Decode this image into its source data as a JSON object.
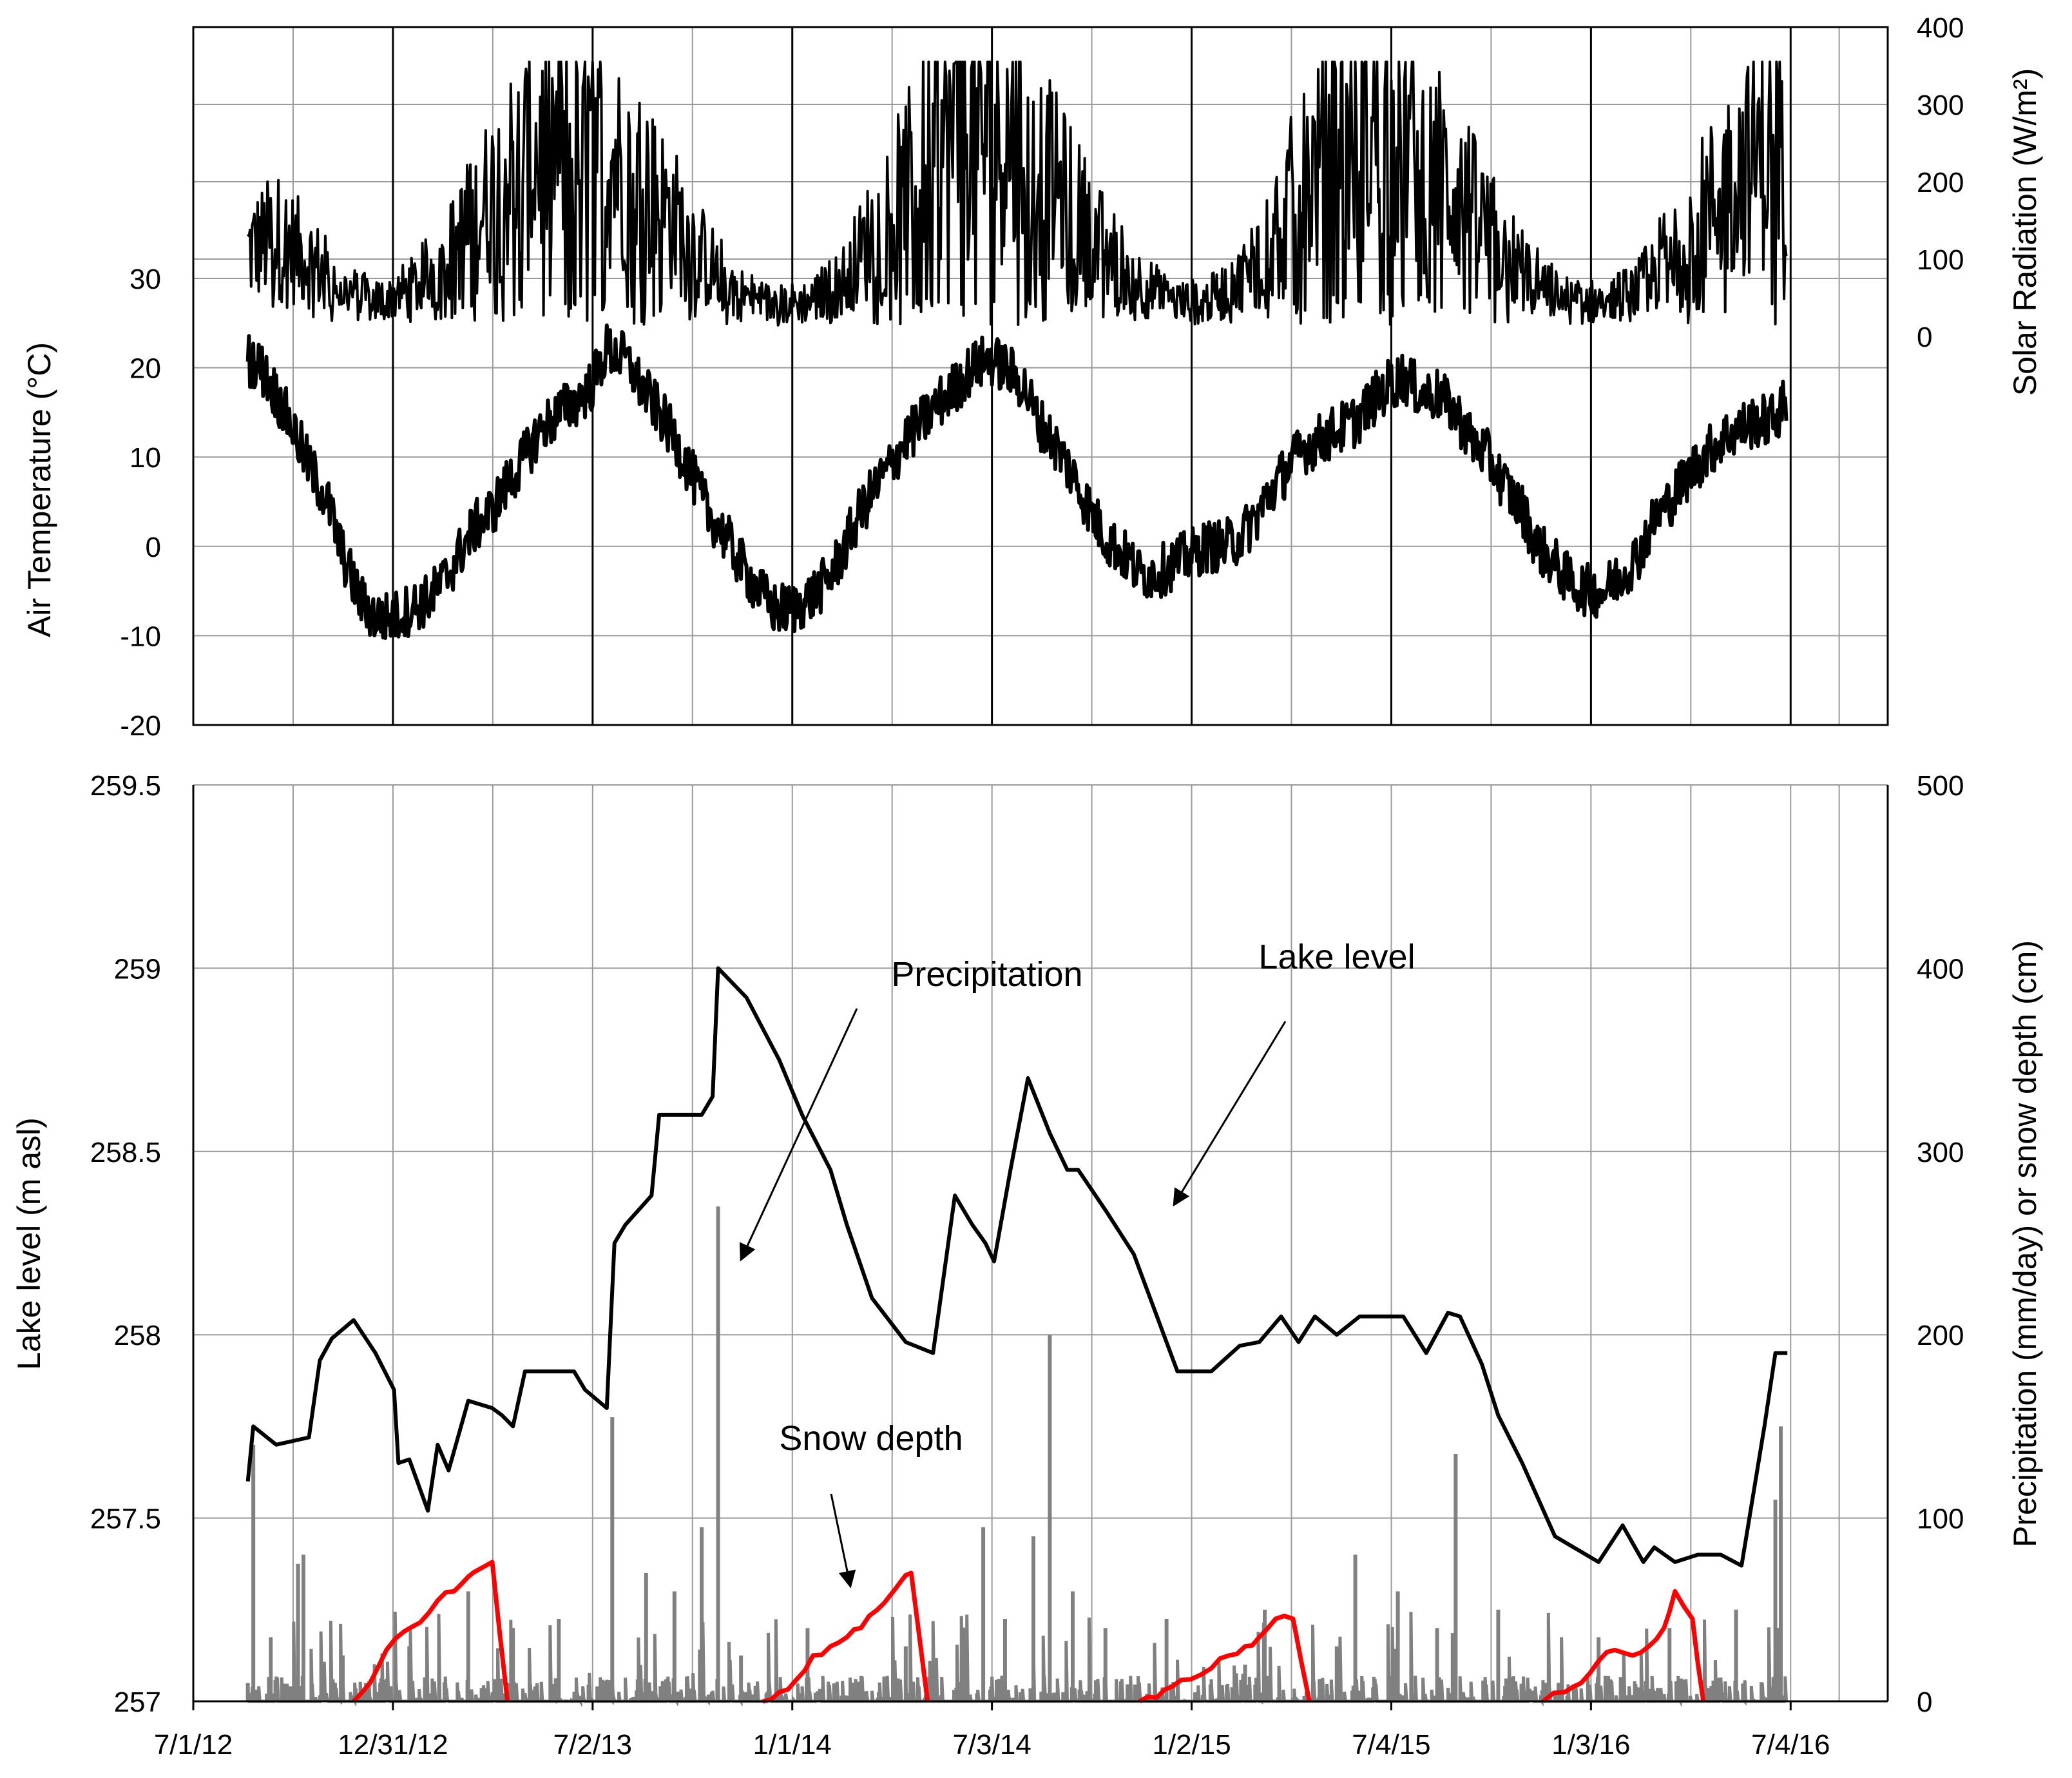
{
  "chart_data": [
    {
      "type": "line",
      "panel": "top",
      "ylabel_left": "Air Temperature (°C)",
      "ylabel_right": "Solar Radiation (W/m²)",
      "ylim_left": [
        -20,
        30
      ],
      "yticks_left": [
        "-20",
        "-10",
        "0",
        "10",
        "20",
        "30"
      ],
      "ylim_right": [
        0,
        400
      ],
      "yticks_right": [
        "0",
        "100",
        "200",
        "300",
        "400"
      ],
      "xlim": [
        "2012-07-01",
        "2016-10-01"
      ],
      "grid": true,
      "series": [
        {
          "key": "solar_radiation",
          "axis": "right",
          "color": "#000000",
          "x": [
            "2012-08-20",
            "2012-09-15",
            "2012-10-15",
            "2012-11-15",
            "2012-12-15",
            "2013-01-15",
            "2013-02-15",
            "2013-03-15",
            "2013-04-15",
            "2013-05-15",
            "2013-06-15",
            "2013-07-15",
            "2013-08-15",
            "2013-09-15",
            "2013-10-15",
            "2013-11-15",
            "2013-12-15",
            "2014-01-15",
            "2014-02-15",
            "2014-03-15",
            "2014-04-15",
            "2014-05-15",
            "2014-06-15",
            "2014-07-15",
            "2014-08-15",
            "2014-09-15",
            "2014-10-15",
            "2014-11-15",
            "2014-12-15",
            "2015-01-15",
            "2015-02-15",
            "2015-03-15",
            "2015-04-15",
            "2015-05-15",
            "2015-06-15",
            "2015-07-15",
            "2015-08-15",
            "2015-09-15",
            "2015-10-15",
            "2015-11-15",
            "2015-12-15",
            "2016-01-15",
            "2016-02-15",
            "2016-03-15",
            "2016-04-15",
            "2016-05-15",
            "2016-06-15",
            "2016-06-30"
          ],
          "y": [
            110,
            130,
            100,
            60,
            45,
            60,
            95,
            150,
            210,
            240,
            250,
            235,
            200,
            150,
            95,
            55,
            40,
            45,
            70,
            130,
            190,
            250,
            270,
            260,
            220,
            165,
            110,
            70,
            45,
            45,
            70,
            130,
            200,
            245,
            270,
            255,
            215,
            165,
            110,
            70,
            45,
            45,
            60,
            110,
            160,
            210,
            240,
            250
          ]
        },
        {
          "key": "air_temperature",
          "axis": "left",
          "color": "#000000",
          "x": [
            "2012-08-20",
            "2012-09-01",
            "2012-09-15",
            "2012-10-01",
            "2012-10-15",
            "2012-11-01",
            "2012-11-15",
            "2012-12-01",
            "2012-12-15",
            "2013-01-01",
            "2013-01-15",
            "2013-02-01",
            "2013-02-15",
            "2013-03-01",
            "2013-03-15",
            "2013-04-01",
            "2013-04-15",
            "2013-05-01",
            "2013-05-15",
            "2013-06-01",
            "2013-06-15",
            "2013-07-01",
            "2013-07-15",
            "2013-08-01",
            "2013-08-15",
            "2013-09-01",
            "2013-09-15",
            "2013-10-01",
            "2013-10-15",
            "2013-11-01",
            "2013-11-15",
            "2013-12-01",
            "2013-12-15",
            "2014-01-01",
            "2014-01-15",
            "2014-02-01",
            "2014-02-15",
            "2014-03-01",
            "2014-03-15",
            "2014-04-01",
            "2014-04-15",
            "2014-05-01",
            "2014-05-15",
            "2014-06-01",
            "2014-06-15",
            "2014-07-01",
            "2014-07-15",
            "2014-08-01",
            "2014-08-15",
            "2014-09-01",
            "2014-09-15",
            "2014-10-01",
            "2014-10-15",
            "2014-11-01",
            "2014-11-15",
            "2014-12-01",
            "2014-12-15",
            "2015-01-01",
            "2015-01-15",
            "2015-02-01",
            "2015-02-15",
            "2015-03-01",
            "2015-03-15",
            "2015-04-01",
            "2015-04-15",
            "2015-05-01",
            "2015-05-15",
            "2015-06-01",
            "2015-06-15",
            "2015-07-01",
            "2015-07-15",
            "2015-08-01",
            "2015-08-15",
            "2015-09-01",
            "2015-09-15",
            "2015-10-01",
            "2015-10-15",
            "2015-11-01",
            "2015-11-15",
            "2015-12-01",
            "2015-12-15",
            "2016-01-01",
            "2016-01-15",
            "2016-02-01",
            "2016-02-15",
            "2016-03-01",
            "2016-03-15",
            "2016-04-01",
            "2016-04-15",
            "2016-05-01",
            "2016-05-15",
            "2016-06-01",
            "2016-06-15",
            "2016-06-30"
          ],
          "y": [
            21,
            20,
            17,
            13,
            9,
            5,
            -1,
            -6,
            -8,
            -8,
            -7,
            -6,
            -4,
            -1,
            2,
            4,
            7,
            10,
            13,
            15,
            16,
            18,
            22,
            21,
            18,
            15,
            12,
            8,
            4,
            1,
            -2,
            -5,
            -7,
            -7,
            -6,
            -4,
            -1,
            3,
            6,
            9,
            12,
            14,
            16,
            18,
            20,
            21,
            20,
            18,
            14,
            11,
            8,
            4,
            1,
            -1,
            -3,
            -3,
            -2,
            -1,
            0,
            0,
            1,
            3,
            6,
            9,
            11,
            12,
            13,
            14,
            16,
            18,
            19,
            17,
            17,
            15,
            12,
            10,
            7,
            4,
            0,
            -2,
            -4,
            -5,
            -5,
            -3,
            -1,
            3,
            5,
            8,
            10,
            12,
            13,
            14,
            14,
            16
          ]
        }
      ]
    },
    {
      "type": "line",
      "panel": "bottom",
      "ylabel_left": "Lake level (m asl)",
      "ylabel_right": "Precipitation (mm/day) or snow depth (cm)",
      "ylim_left": [
        257,
        259.5
      ],
      "yticks_left": [
        "257",
        "257.5",
        "258",
        "258.5",
        "259",
        "259.5"
      ],
      "ylim_right": [
        0,
        500
      ],
      "yticks_right": [
        "0",
        "100",
        "200",
        "300",
        "400",
        "500"
      ],
      "xlim": [
        "2012-07-01",
        "2016-10-01"
      ],
      "xticks": [
        "7/1/12",
        "12/31/12",
        "7/2/13",
        "1/1/14",
        "7/3/14",
        "1/2/15",
        "7/4/15",
        "1/3/16",
        "7/4/16"
      ],
      "grid": true,
      "annotations": [
        {
          "text": "Precipitation",
          "points_to": [
            "2013-12-10",
            250
          ]
        },
        {
          "text": "Lake level",
          "points_to": [
            "2014-11-10",
            258.35
          ]
        },
        {
          "text": "Snow depth",
          "points_to": [
            "2014-04-05",
            68
          ]
        }
      ],
      "series": [
        {
          "key": "lake_level",
          "axis": "left",
          "color": "#000000",
          "x": [
            "2012-08-20",
            "2012-08-25",
            "2012-09-15",
            "2012-10-15",
            "2012-10-25",
            "2012-11-05",
            "2012-11-25",
            "2012-12-15",
            "2013-01-01",
            "2013-01-05",
            "2013-01-15",
            "2013-02-01",
            "2013-02-10",
            "2013-02-20",
            "2013-03-10",
            "2013-04-01",
            "2013-04-10",
            "2013-04-20",
            "2013-05-01",
            "2013-05-15",
            "2013-06-15",
            "2013-06-25",
            "2013-07-15",
            "2013-07-22",
            "2013-08-01",
            "2013-08-25",
            "2013-09-01",
            "2013-09-20",
            "2013-10-10",
            "2013-10-20",
            "2013-10-25",
            "2013-11-20",
            "2013-12-20",
            "2014-01-10",
            "2014-02-05",
            "2014-02-20",
            "2014-03-15",
            "2014-04-15",
            "2014-05-10",
            "2014-05-30",
            "2014-06-15",
            "2014-06-27",
            "2014-07-05",
            "2014-07-20",
            "2014-08-05",
            "2014-08-25",
            "2014-09-10",
            "2014-09-20",
            "2014-10-15",
            "2014-11-10",
            "2014-12-20",
            "2015-01-20",
            "2015-02-15",
            "2015-03-05",
            "2015-03-25",
            "2015-04-10",
            "2015-04-25",
            "2015-05-15",
            "2015-06-05",
            "2015-06-25",
            "2015-07-15",
            "2015-08-05",
            "2015-08-25",
            "2015-09-05",
            "2015-09-25",
            "2015-10-10",
            "2015-11-01",
            "2015-12-01",
            "2016-01-10",
            "2016-02-01",
            "2016-02-20",
            "2016-03-01",
            "2016-03-20",
            "2016-04-10",
            "2016-05-01",
            "2016-05-20",
            "2016-06-10",
            "2016-06-20",
            "2016-06-25",
            "2016-06-28",
            "2016-07-01"
          ],
          "y": [
            257.6,
            257.75,
            257.7,
            257.72,
            257.93,
            257.99,
            258.04,
            257.95,
            257.85,
            257.65,
            257.66,
            257.52,
            257.7,
            257.63,
            257.82,
            257.8,
            257.78,
            257.75,
            257.9,
            257.9,
            257.9,
            257.85,
            257.8,
            258.25,
            258.3,
            258.38,
            258.6,
            258.6,
            258.6,
            258.65,
            259.0,
            258.92,
            258.75,
            258.6,
            258.45,
            258.3,
            258.1,
            257.98,
            257.95,
            258.38,
            258.3,
            258.25,
            258.2,
            258.45,
            258.7,
            258.55,
            258.45,
            258.45,
            258.34,
            258.22,
            257.9,
            257.9,
            257.97,
            257.98,
            258.05,
            257.98,
            258.05,
            258.0,
            258.05,
            258.05,
            258.05,
            257.95,
            258.06,
            258.05,
            257.92,
            257.78,
            257.65,
            257.45,
            257.38,
            257.48,
            257.38,
            257.42,
            257.38,
            257.4,
            257.4,
            257.37,
            257.75,
            257.95,
            257.95,
            257.95,
            257.95
          ]
        },
        {
          "key": "precipitation",
          "axis": "right",
          "color": "#808080",
          "x": [
            "2012-08-20",
            "2012-08-25",
            "2012-09-10",
            "2012-10-05",
            "2012-10-10",
            "2012-11-15",
            "2013-01-15",
            "2013-03-10",
            "2013-04-20",
            "2013-06-01",
            "2013-07-20",
            "2013-08-20",
            "2013-09-15",
            "2013-10-10",
            "2013-10-25",
            "2013-11-15",
            "2014-01-15",
            "2014-04-15",
            "2014-06-25",
            "2014-07-15",
            "2014-08-10",
            "2014-08-25",
            "2014-09-15",
            "2014-10-15",
            "2014-12-10",
            "2015-02-20",
            "2015-03-10",
            "2015-05-15",
            "2015-06-01",
            "2015-07-10",
            "2015-08-15",
            "2015-09-01",
            "2015-10-10",
            "2016-01-10",
            "2016-03-15",
            "2016-05-15",
            "2016-06-20",
            "2016-06-25"
          ],
          "y": [
            10,
            140,
            35,
            75,
            80,
            25,
            30,
            60,
            40,
            45,
            155,
            70,
            60,
            95,
            270,
            25,
            40,
            30,
            95,
            45,
            90,
            200,
            60,
            40,
            45,
            20,
            50,
            30,
            80,
            60,
            40,
            135,
            50,
            35,
            40,
            50,
            110,
            150
          ]
        },
        {
          "key": "snow_depth",
          "axis": "right",
          "color": "#ff0000",
          "x": [
            "2012-11-25",
            "2012-12-10",
            "2012-12-25",
            "2013-01-10",
            "2013-01-25",
            "2013-02-10",
            "2013-02-25",
            "2013-03-10",
            "2013-03-20",
            "2013-04-01",
            "2013-04-15",
            "2013-12-05",
            "2013-12-20",
            "2014-01-05",
            "2014-01-20",
            "2014-02-05",
            "2014-02-20",
            "2014-03-05",
            "2014-03-20",
            "2014-04-01",
            "2014-04-10",
            "2014-04-20",
            "2014-05-05",
            "2014-11-15",
            "2014-12-01",
            "2014-12-15",
            "2015-01-01",
            "2015-01-20",
            "2015-02-05",
            "2015-02-20",
            "2015-03-05",
            "2015-03-20",
            "2015-04-05",
            "2015-04-20",
            "2015-11-20",
            "2015-12-10",
            "2015-12-25",
            "2016-01-10",
            "2016-01-25",
            "2016-02-10",
            "2016-02-25",
            "2016-03-10",
            "2016-03-20",
            "2016-04-05",
            "2016-04-15"
          ],
          "y": [
            0,
            10,
            28,
            38,
            43,
            55,
            60,
            68,
            72,
            76,
            0,
            0,
            5,
            12,
            25,
            30,
            35,
            40,
            50,
            58,
            65,
            70,
            0,
            0,
            2,
            8,
            12,
            18,
            25,
            30,
            35,
            45,
            45,
            0,
            0,
            5,
            10,
            22,
            28,
            25,
            30,
            40,
            60,
            45,
            0
          ]
        }
      ]
    }
  ]
}
